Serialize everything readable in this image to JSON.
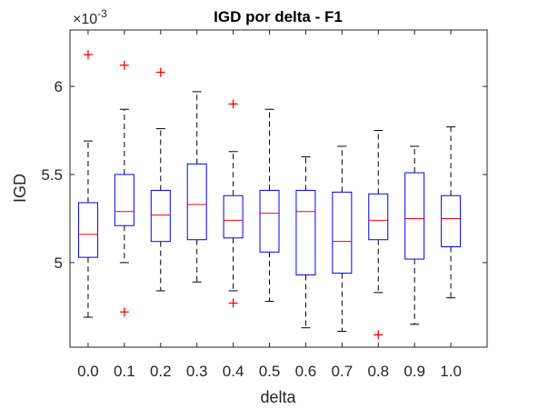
{
  "chart_data": {
    "type": "boxplot",
    "title": "IGD por delta - F1",
    "xlabel": "delta",
    "ylabel": "IGD",
    "y_exponent_label": "×10",
    "y_exponent_power": "-3",
    "ylim": [
      4.52,
      6.32
    ],
    "yticks": [
      5,
      5.5,
      6
    ],
    "ytick_labels": [
      "5",
      "5.5",
      "6"
    ],
    "categories": [
      "0.0",
      "0.1",
      "0.2",
      "0.3",
      "0.4",
      "0.5",
      "0.6",
      "0.7",
      "0.8",
      "0.9",
      "1.0"
    ],
    "boxes": [
      {
        "category": "0.0",
        "min": 4.69,
        "q1": 5.03,
        "median": 5.16,
        "q3": 5.34,
        "max": 5.69,
        "outliers": [
          6.18
        ]
      },
      {
        "category": "0.1",
        "min": 5.0,
        "q1": 5.21,
        "median": 5.29,
        "q3": 5.5,
        "max": 5.87,
        "outliers": [
          6.12,
          4.72
        ]
      },
      {
        "category": "0.2",
        "min": 4.84,
        "q1": 5.12,
        "median": 5.27,
        "q3": 5.41,
        "max": 5.76,
        "outliers": [
          6.08
        ]
      },
      {
        "category": "0.3",
        "min": 4.89,
        "q1": 5.13,
        "median": 5.33,
        "q3": 5.56,
        "max": 5.97,
        "outliers": []
      },
      {
        "category": "0.4",
        "min": 4.84,
        "q1": 5.14,
        "median": 5.24,
        "q3": 5.38,
        "max": 5.63,
        "outliers": [
          5.9,
          4.77
        ]
      },
      {
        "category": "0.5",
        "min": 4.78,
        "q1": 5.06,
        "median": 5.28,
        "q3": 5.41,
        "max": 5.87,
        "outliers": []
      },
      {
        "category": "0.6",
        "min": 4.63,
        "q1": 4.93,
        "median": 5.29,
        "q3": 5.41,
        "max": 5.6,
        "outliers": []
      },
      {
        "category": "0.7",
        "min": 4.61,
        "q1": 4.94,
        "median": 5.12,
        "q3": 5.4,
        "max": 5.66,
        "outliers": []
      },
      {
        "category": "0.8",
        "min": 4.83,
        "q1": 5.13,
        "median": 5.24,
        "q3": 5.39,
        "max": 5.75,
        "outliers": [
          4.59
        ]
      },
      {
        "category": "0.9",
        "min": 4.65,
        "q1": 5.02,
        "median": 5.25,
        "q3": 5.51,
        "max": 5.66,
        "outliers": []
      },
      {
        "category": "1.0",
        "min": 4.8,
        "q1": 5.09,
        "median": 5.25,
        "q3": 5.38,
        "max": 5.77,
        "outliers": []
      }
    ],
    "colors": {
      "box": "#0000ff",
      "median": "#ff0000",
      "whisker": "#000000",
      "outlier": "#ff0000"
    },
    "grid": false
  }
}
